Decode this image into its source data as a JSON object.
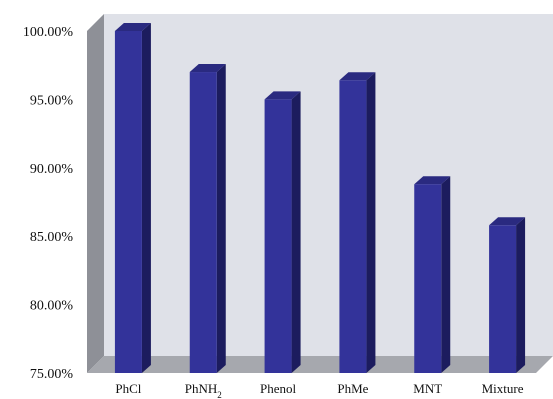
{
  "chart_data": {
    "type": "bar",
    "categories": [
      "PhCl",
      "PhNH2",
      "Phenol",
      "PhMe",
      "MNT",
      "Mixture"
    ],
    "category_labels": [
      {
        "main": "PhCl",
        "sub": ""
      },
      {
        "main": "PhNH",
        "sub": "2"
      },
      {
        "main": "Phenol",
        "sub": ""
      },
      {
        "main": "PhMe",
        "sub": ""
      },
      {
        "main": "MNT",
        "sub": ""
      },
      {
        "main": "Mixture",
        "sub": ""
      }
    ],
    "values": [
      100.0,
      97.0,
      95.0,
      96.4,
      88.8,
      85.8
    ],
    "ylim": [
      75,
      100
    ],
    "yticks": [
      "75.00%",
      "80.00%",
      "85.00%",
      "90.00%",
      "95.00%",
      "100.00%"
    ],
    "ytick_values": [
      75,
      80,
      85,
      90,
      95,
      100
    ],
    "title": "",
    "xlabel": "",
    "ylabel": "",
    "grid": false,
    "style": "3d-column",
    "colors": {
      "bar_front": "#33339a",
      "bar_side": "#1c1c5e",
      "bar_top": "#2a2a80",
      "back_wall": "#dfe1e8",
      "side_wall": "#8e9097",
      "floor": "#a6a8ae"
    }
  }
}
